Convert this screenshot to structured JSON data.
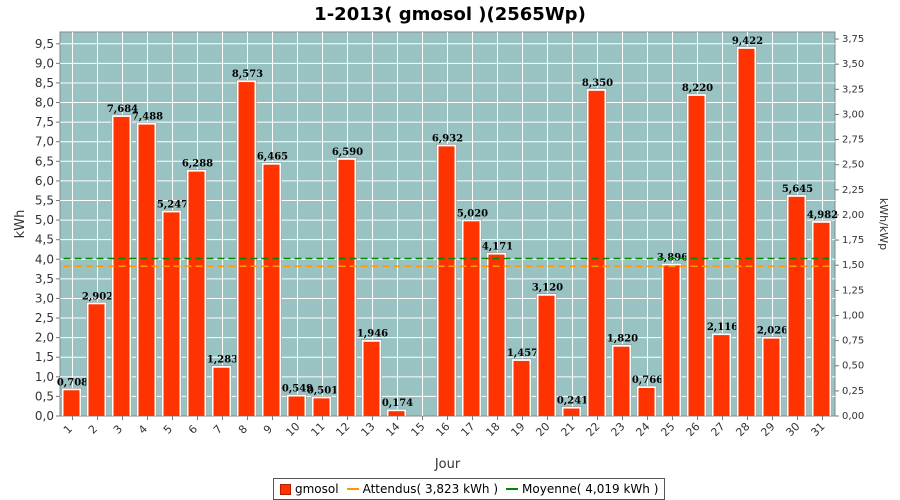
{
  "chart_data": {
    "type": "bar",
    "title": "1-2013( gmosol )(2565Wp)",
    "xlabel": "Jour",
    "ylabel": "kWh",
    "y2label": "kWh/kWp",
    "ylim": [
      0,
      9.8
    ],
    "y2lim": [
      0,
      3.82
    ],
    "grid": true,
    "legend_position": "bottom",
    "categories": [
      "1",
      "2",
      "3",
      "4",
      "5",
      "6",
      "7",
      "8",
      "9",
      "10",
      "11",
      "12",
      "13",
      "14",
      "15",
      "16",
      "17",
      "18",
      "19",
      "20",
      "21",
      "22",
      "23",
      "24",
      "25",
      "26",
      "27",
      "28",
      "29",
      "30",
      "31"
    ],
    "series": [
      {
        "name": "gmosol",
        "color": "#ff3300",
        "values": [
          0.708,
          2.902,
          7.684,
          7.488,
          5.247,
          6.288,
          1.283,
          8.573,
          6.465,
          0.549,
          0.501,
          6.59,
          1.946,
          0.174,
          0,
          6.932,
          5.02,
          4.171,
          1.457,
          3.12,
          0.241,
          8.35,
          1.82,
          0.766,
          3.896,
          8.22,
          2.116,
          9.422,
          2.026,
          5.645,
          4.982
        ],
        "labels": [
          "0,708",
          "2,902",
          "7,684",
          "7,488",
          "5,247",
          "6,288",
          "1,283",
          "8,573",
          "6,465",
          "0,549",
          "0,501",
          "6,590",
          "1,946",
          "0,174",
          "",
          "6,932",
          "5,020",
          "4,171",
          "1,457",
          "3,120",
          "0,241",
          "8,350",
          "1,820",
          "0,766",
          "3,896",
          "8,220",
          "2,116",
          "9,422",
          "2,026",
          "5,645",
          "4,982"
        ]
      }
    ],
    "reference_lines": [
      {
        "name": "Attendus( 3,823 kWh )",
        "value": 3.823,
        "color": "#ff9900"
      },
      {
        "name": "Moyenne( 4,019 kWh )",
        "value": 4.019,
        "color": "#008800"
      }
    ],
    "yticks": [
      "0,0",
      "0,5",
      "1,0",
      "1,5",
      "2,0",
      "2,5",
      "3,0",
      "3,5",
      "4,0",
      "4,5",
      "5,0",
      "5,5",
      "6,0",
      "6,5",
      "7,0",
      "7,5",
      "8,0",
      "8,5",
      "9,0",
      "9,5"
    ],
    "y2ticks": [
      "0,00",
      "0,25",
      "0,50",
      "0,75",
      "1,00",
      "1,25",
      "1,50",
      "1,75",
      "2,00",
      "2,25",
      "2,50",
      "2,75",
      "3,00",
      "3,25",
      "3,50",
      "3,75"
    ],
    "plot_background": "#99c2c2",
    "grid_color": "#ffffff"
  },
  "legend": {
    "bar_label": "gmosol",
    "line1_label": "Attendus( 3,823 kWh )",
    "line2_label": "Moyenne( 4,019 kWh )"
  }
}
